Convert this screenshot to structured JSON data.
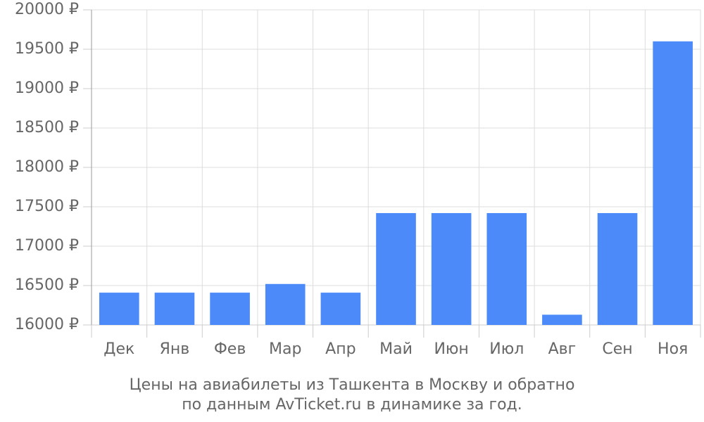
{
  "chart_data": {
    "type": "bar",
    "title": [
      "Цены на авиабилеты из Ташкента в Москву и обратно",
      "по данным AvTicket.ru в динамике за год."
    ],
    "categories": [
      "Дек",
      "Янв",
      "Фев",
      "Мар",
      "Апр",
      "Май",
      "Июн",
      "Июл",
      "Авг",
      "Сен",
      "Ноя"
    ],
    "values": [
      16410,
      16410,
      16410,
      16520,
      16410,
      17420,
      17420,
      17420,
      16130,
      17420,
      19600
    ],
    "color": "#4d8af9",
    "ylim": [
      16000,
      20000
    ],
    "yticks": [
      {
        "value": 16000,
        "label": "16000 ₽"
      },
      {
        "value": 16500,
        "label": "16500 ₽"
      },
      {
        "value": 17000,
        "label": "17000 ₽"
      },
      {
        "value": 17500,
        "label": "17500 ₽"
      },
      {
        "value": 18000,
        "label": "18000 ₽"
      },
      {
        "value": 18500,
        "label": "18500 ₽"
      },
      {
        "value": 19000,
        "label": "19000 ₽"
      },
      {
        "value": 19500,
        "label": "19500 ₽"
      },
      {
        "value": 20000,
        "label": "20000 ₽"
      }
    ],
    "grid": true
  }
}
